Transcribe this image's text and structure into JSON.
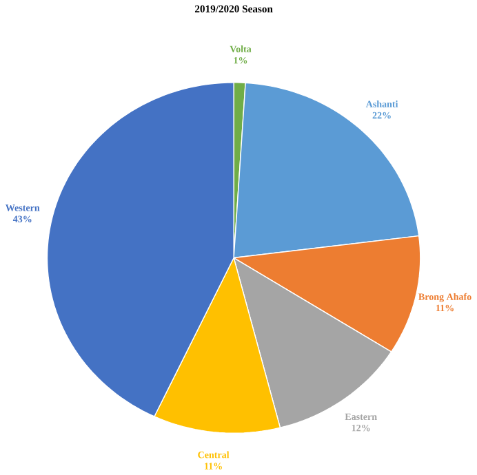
{
  "chart_data": {
    "type": "pie",
    "title": "2019/2020 Season",
    "categories": [
      "Volta",
      "Ashanti",
      "Brong Ahafo",
      "Eastern",
      "Central",
      "Western"
    ],
    "values": [
      1,
      22,
      11,
      12,
      11,
      43
    ],
    "colors": [
      "#70ad47",
      "#5b9bd5",
      "#ed7d31",
      "#a5a5a5",
      "#ffc000",
      "#4472c4"
    ],
    "data_labels": true,
    "value_labels": [
      "1%",
      "22%",
      "11%",
      "12%",
      "11%",
      "43%"
    ]
  }
}
